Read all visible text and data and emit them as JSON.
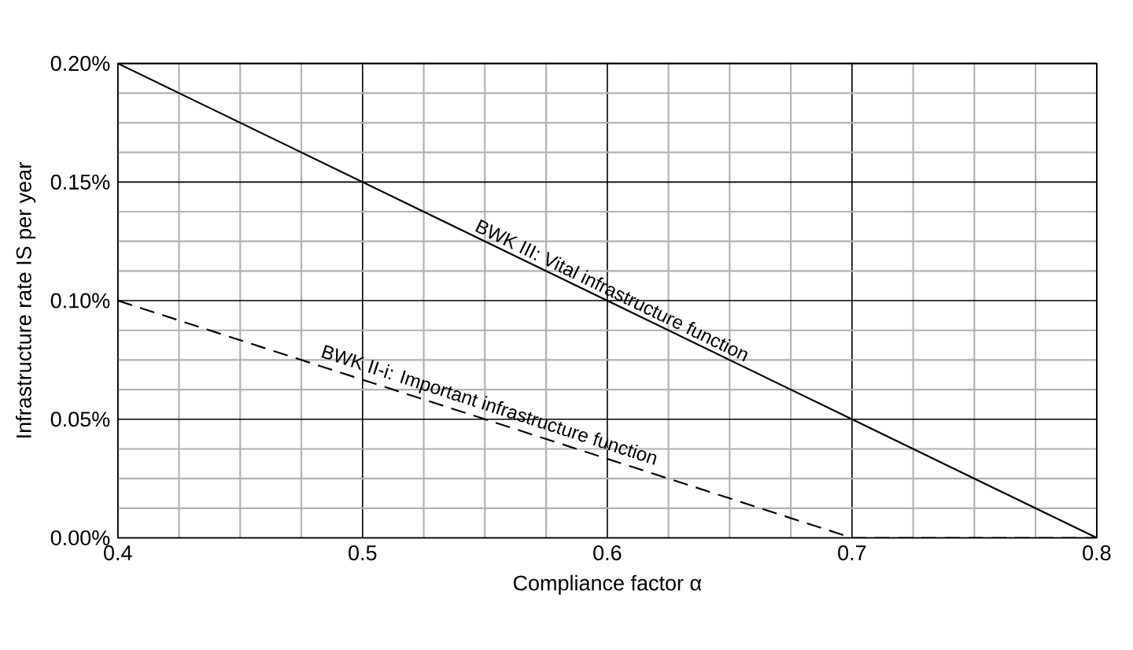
{
  "chart_data": {
    "type": "line",
    "xlabel": "Compliance factor α",
    "ylabel": "Infrastructure rate IS  per year",
    "xlim": [
      0.4,
      0.8
    ],
    "xticks": [
      0.4,
      0.5,
      0.6,
      0.7,
      0.8
    ],
    "ylim": [
      0,
      0.2
    ],
    "yticks": [
      {
        "value": 0,
        "label": "0.00%"
      },
      {
        "value": 0.05,
        "label": "0.05%"
      },
      {
        "value": 0.1,
        "label": "0.10%"
      },
      {
        "value": 0.15,
        "label": "0.15%"
      },
      {
        "value": 0.2,
        "label": "0.20%"
      }
    ],
    "grid": true,
    "marker": "none",
    "series": [
      {
        "color": "#000000",
        "line_style": "solid",
        "x": [
          0.4,
          0.8
        ],
        "values": [
          0.2,
          0
        ]
      },
      {
        "color": "#000000",
        "line_style": "dashed",
        "x": [
          0.4,
          0.7,
          0.8
        ],
        "values": [
          0.1,
          0,
          0
        ]
      }
    ],
    "annotations": [
      {
        "text": "BWK III: Vital infrastructure function",
        "x": 0.6,
        "y": 0.1
      },
      {
        "text": "BWK II-i: Important infrastructure function",
        "x": 0.55,
        "y": 0.05
      }
    ]
  }
}
